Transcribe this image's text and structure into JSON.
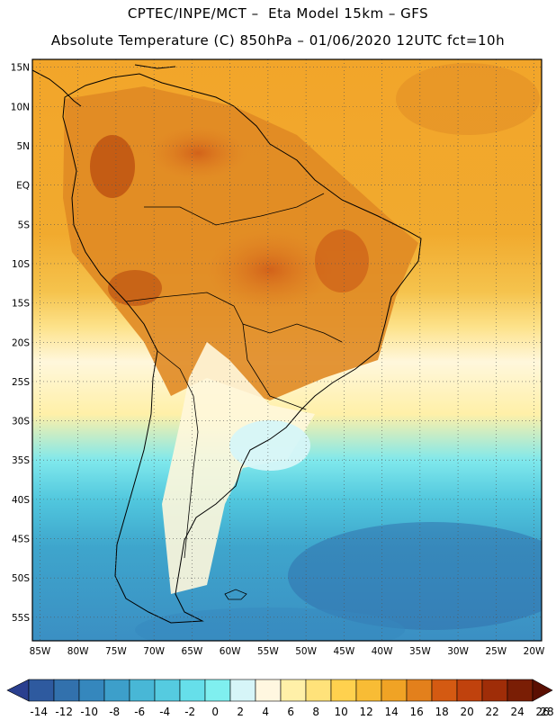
{
  "header": {
    "line1": "CPTEC/INPE/MCT –  Eta Model 15km – GFS",
    "line2": "Absolute Temperature (C) 850hPa – 01/06/2020 12UTC fct=10h"
  },
  "map_data": {
    "type": "heatmap",
    "variable": "Absolute Temperature (C) 850hPa",
    "lon_range": [
      -86,
      -19
    ],
    "lat_range": [
      -58,
      16
    ],
    "lon_ticks": [
      "85W",
      "80W",
      "75W",
      "70W",
      "65W",
      "60W",
      "55W",
      "50W",
      "45W",
      "40W",
      "35W",
      "30W",
      "25W",
      "20W"
    ],
    "lat_ticks": [
      "15N",
      "10N",
      "5N",
      "EQ",
      "5S",
      "10S",
      "15S",
      "20S",
      "25S",
      "30S",
      "35S",
      "40S",
      "45S",
      "50S",
      "55S"
    ],
    "colorbar": {
      "labels": [
        "-14",
        "-12",
        "-10",
        "-8",
        "-6",
        "-4",
        "-2",
        "0",
        "2",
        "4",
        "6",
        "8",
        "10",
        "12",
        "14",
        "16",
        "18",
        "20",
        "22",
        "24",
        "26",
        "28"
      ],
      "colors": [
        "#2a3f8f",
        "#2e5a9f",
        "#3271ad",
        "#3587bd",
        "#3d9fca",
        "#48b7d6",
        "#55cbe0",
        "#66dfea",
        "#7fefef",
        "#d6f5f8",
        "#fff7e0",
        "#fff0a8",
        "#ffe27a",
        "#ffd14e",
        "#f8bc35",
        "#f0a325",
        "#e3801c",
        "#d45a12",
        "#c0420d",
        "#9f2d08",
        "#7a1e05",
        "#5a0f02"
      ]
    }
  }
}
